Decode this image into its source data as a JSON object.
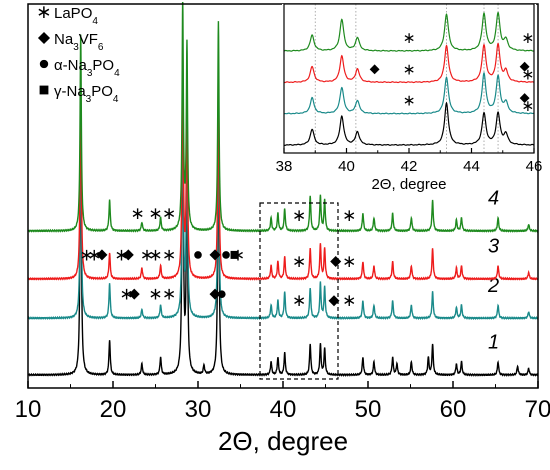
{
  "colors": {
    "curve_1": "#000000",
    "curve_2": "#1a8a8a",
    "curve_3": "#ee1c1c",
    "curve_4": "#1e8a1e",
    "axis": "#000000",
    "dashed_box": "#000000",
    "inset_gridline": "#9a9a9a"
  },
  "chart_data": [
    {
      "type": "line",
      "title": "",
      "xlabel": "2Θ, degree",
      "ylabel": "",
      "xlim": [
        10,
        70
      ],
      "x_ticks": [
        10,
        20,
        30,
        40,
        50,
        60,
        70
      ],
      "x_tick_labels": [
        "10",
        "20",
        "30",
        "40",
        "50",
        "60",
        "70"
      ],
      "y_ticks_shown": false,
      "legend": {
        "placement": "top-left",
        "entries": [
          {
            "marker": "asterisk",
            "marker_icon": "asterisk-icon",
            "parts": [
              {
                "t": "LaPO",
                "s": ""
              },
              {
                "t": "4",
                "s": "sub"
              }
            ]
          },
          {
            "marker": "diamond",
            "marker_icon": "diamond-icon",
            "parts": [
              {
                "t": "Na",
                "s": ""
              },
              {
                "t": "3",
                "s": "sub"
              },
              {
                "t": "VF",
                "s": ""
              },
              {
                "t": "6",
                "s": "sub"
              }
            ]
          },
          {
            "marker": "circle",
            "marker_icon": "circle-icon",
            "parts": [
              {
                "t": "α-Na",
                "s": ""
              },
              {
                "t": "3",
                "s": "sub"
              },
              {
                "t": "PO",
                "s": ""
              },
              {
                "t": "4",
                "s": "sub"
              }
            ]
          },
          {
            "marker": "square",
            "marker_icon": "square-icon",
            "parts": [
              {
                "t": "γ-Na",
                "s": ""
              },
              {
                "t": "3",
                "s": "sub"
              },
              {
                "t": "PO",
                "s": ""
              },
              {
                "t": "4",
                "s": "sub"
              }
            ]
          }
        ]
      },
      "series": [
        {
          "label": "1",
          "offset": 0,
          "baseline": 2,
          "peaks": [
            [
              16.2,
              62
            ],
            [
              19.6,
              8
            ],
            [
              23.4,
              2.5
            ],
            [
              25.6,
              4
            ],
            [
              28.2,
              70
            ],
            [
              28.7,
              50
            ],
            [
              30.7,
              2
            ],
            [
              32.4,
              62
            ],
            [
              38.6,
              3
            ],
            [
              39.4,
              4
            ],
            [
              40.2,
              5
            ],
            [
              43.2,
              7
            ],
            [
              44.4,
              7
            ],
            [
              44.9,
              6
            ],
            [
              49.4,
              4
            ],
            [
              50.7,
              3
            ],
            [
              52.9,
              4
            ],
            [
              53.4,
              2.5
            ],
            [
              55.1,
              3
            ],
            [
              57.1,
              4
            ],
            [
              57.6,
              7
            ],
            [
              60.4,
              2.5
            ],
            [
              61.0,
              3
            ],
            [
              65.3,
              3
            ],
            [
              67.6,
              2
            ],
            [
              68.9,
              1.5
            ]
          ],
          "markers": []
        },
        {
          "label": "2",
          "offset": 13,
          "baseline": 2,
          "peaks": [
            [
              16.2,
              45
            ],
            [
              19.6,
              8
            ],
            [
              23.4,
              2
            ],
            [
              25.6,
              3
            ],
            [
              28.2,
              52
            ],
            [
              28.7,
              42
            ],
            [
              32.4,
              48
            ],
            [
              38.6,
              3
            ],
            [
              39.4,
              4
            ],
            [
              40.2,
              6
            ],
            [
              43.2,
              7
            ],
            [
              44.4,
              8
            ],
            [
              44.9,
              7
            ],
            [
              49.4,
              4
            ],
            [
              50.7,
              3
            ],
            [
              52.9,
              4
            ],
            [
              55.1,
              3
            ],
            [
              57.6,
              6
            ],
            [
              60.4,
              2.5
            ],
            [
              61.0,
              3
            ],
            [
              65.3,
              3
            ],
            [
              68.9,
              1.5
            ]
          ],
          "markers": [
            {
              "symbol": "asterisk",
              "x": 21.6,
              "level": 5.5
            },
            {
              "symbol": "diamond",
              "x": 22.5,
              "level": 5.5
            },
            {
              "symbol": "asterisk",
              "x": 25.0,
              "level": 5.5
            },
            {
              "symbol": "asterisk",
              "x": 26.6,
              "level": 5.5
            },
            {
              "symbol": "diamond",
              "x": 32.0,
              "level": 5.5
            },
            {
              "symbol": "circle",
              "x": 32.8,
              "level": 5.5
            },
            {
              "symbol": "asterisk",
              "x": 41.9,
              "level": 4
            },
            {
              "symbol": "diamond",
              "x": 46.0,
              "level": 4
            },
            {
              "symbol": "asterisk",
              "x": 47.8,
              "level": 4
            }
          ]
        },
        {
          "label": "3",
          "offset": 22,
          "baseline": 2,
          "peaks": [
            [
              16.2,
              45
            ],
            [
              19.6,
              6
            ],
            [
              23.4,
              2.5
            ],
            [
              25.6,
              3
            ],
            [
              28.2,
              52
            ],
            [
              28.7,
              42
            ],
            [
              32.4,
              48
            ],
            [
              38.6,
              3
            ],
            [
              39.4,
              4
            ],
            [
              40.2,
              5
            ],
            [
              43.2,
              7
            ],
            [
              44.4,
              8
            ],
            [
              44.9,
              7
            ],
            [
              49.4,
              4
            ],
            [
              50.7,
              3
            ],
            [
              52.9,
              4
            ],
            [
              55.1,
              3
            ],
            [
              57.6,
              7
            ],
            [
              60.4,
              2.5
            ],
            [
              61.0,
              3
            ],
            [
              65.3,
              3
            ],
            [
              68.9,
              1.5
            ]
          ],
          "markers": [
            {
              "symbol": "asterisk",
              "x": 16.9,
              "level": 5.5
            },
            {
              "symbol": "asterisk",
              "x": 17.8,
              "level": 5.5
            },
            {
              "symbol": "diamond",
              "x": 18.7,
              "level": 5.5
            },
            {
              "symbol": "asterisk",
              "x": 21.0,
              "level": 5.5
            },
            {
              "symbol": "diamond",
              "x": 21.8,
              "level": 5.5
            },
            {
              "symbol": "asterisk",
              "x": 24.0,
              "level": 5.5
            },
            {
              "symbol": "asterisk",
              "x": 25.0,
              "level": 5.5
            },
            {
              "symbol": "asterisk",
              "x": 26.6,
              "level": 5.5
            },
            {
              "symbol": "circle",
              "x": 30.0,
              "level": 5.5
            },
            {
              "symbol": "diamond",
              "x": 32.0,
              "level": 5.5
            },
            {
              "symbol": "circle",
              "x": 33.3,
              "level": 5.5
            },
            {
              "symbol": "square",
              "x": 34.3,
              "level": 5.5
            },
            {
              "symbol": "asterisk",
              "x": 34.7,
              "level": 5.5
            },
            {
              "symbol": "asterisk",
              "x": 41.9,
              "level": 4
            },
            {
              "symbol": "diamond",
              "x": 46.2,
              "level": 4
            },
            {
              "symbol": "asterisk",
              "x": 47.8,
              "level": 4
            }
          ]
        },
        {
          "label": "4",
          "offset": 33,
          "baseline": 2,
          "peaks": [
            [
              16.2,
              45
            ],
            [
              19.6,
              7
            ],
            [
              23.4,
              2
            ],
            [
              25.6,
              3
            ],
            [
              28.2,
              52
            ],
            [
              28.7,
              42
            ],
            [
              32.4,
              48
            ],
            [
              38.6,
              3
            ],
            [
              39.4,
              4
            ],
            [
              40.2,
              5
            ],
            [
              43.2,
              8
            ],
            [
              44.4,
              8
            ],
            [
              44.9,
              7
            ],
            [
              49.4,
              4
            ],
            [
              50.7,
              3
            ],
            [
              52.9,
              4
            ],
            [
              55.1,
              3
            ],
            [
              57.6,
              7
            ],
            [
              60.4,
              2.5
            ],
            [
              61.0,
              3
            ],
            [
              65.3,
              3
            ],
            [
              68.9,
              1.5
            ]
          ],
          "markers": [
            {
              "symbol": "asterisk",
              "x": 22.9,
              "level": 4
            },
            {
              "symbol": "asterisk",
              "x": 25.0,
              "level": 4
            },
            {
              "symbol": "asterisk",
              "x": 26.6,
              "level": 4
            },
            {
              "symbol": "asterisk",
              "x": 41.9,
              "level": 3.5
            },
            {
              "symbol": "asterisk",
              "x": 47.8,
              "level": 3.5
            }
          ]
        }
      ],
      "highlight_region": {
        "xlim": [
          38,
          46
        ],
        "style": "dashed"
      }
    },
    {
      "type": "line",
      "title": "",
      "xlabel": "2Θ, degree",
      "ylabel": "",
      "xlim": [
        38,
        46
      ],
      "x_ticks": [
        38,
        40,
        42,
        44,
        46
      ],
      "x_tick_labels": [
        "38",
        "40",
        "42",
        "44",
        "46"
      ],
      "y_ticks_shown": false,
      "guide_lines_x": [
        39.0,
        40.3,
        43.2,
        44.4,
        44.85
      ],
      "series": [
        {
          "label": "1",
          "offset": 0,
          "baseline": 1,
          "peaks": [
            [
              38.9,
              3
            ],
            [
              39.85,
              5.5
            ],
            [
              40.35,
              2.5
            ],
            [
              43.2,
              8
            ],
            [
              44.4,
              6
            ],
            [
              44.85,
              6
            ],
            [
              45.1,
              2
            ]
          ],
          "markers": []
        },
        {
          "label": "2",
          "offset": 6,
          "baseline": 1,
          "peaks": [
            [
              38.9,
              3
            ],
            [
              39.85,
              5
            ],
            [
              40.35,
              2.5
            ],
            [
              43.2,
              7
            ],
            [
              44.4,
              7.5
            ],
            [
              44.85,
              7
            ],
            [
              45.1,
              2
            ]
          ],
          "markers": [
            {
              "symbol": "asterisk",
              "x": 42.0,
              "level": 2.5
            },
            {
              "symbol": "diamond",
              "x": 45.7,
              "level": 3
            },
            {
              "symbol": "asterisk",
              "x": 45.8,
              "level": 1.5
            }
          ]
        },
        {
          "label": "3",
          "offset": 12,
          "baseline": 1,
          "peaks": [
            [
              38.9,
              3
            ],
            [
              39.85,
              5
            ],
            [
              40.35,
              2.5
            ],
            [
              43.2,
              7
            ],
            [
              44.4,
              7
            ],
            [
              44.85,
              7
            ],
            [
              45.1,
              2
            ]
          ],
          "markers": [
            {
              "symbol": "diamond",
              "x": 40.9,
              "level": 2.5
            },
            {
              "symbol": "asterisk",
              "x": 42.0,
              "level": 2.5
            },
            {
              "symbol": "diamond",
              "x": 45.7,
              "level": 3
            },
            {
              "symbol": "asterisk",
              "x": 45.8,
              "level": 1.5
            }
          ]
        },
        {
          "label": "4",
          "offset": 18,
          "baseline": 1,
          "peaks": [
            [
              38.9,
              3
            ],
            [
              39.85,
              6
            ],
            [
              40.35,
              2.5
            ],
            [
              43.2,
              7
            ],
            [
              44.4,
              7
            ],
            [
              44.85,
              7
            ],
            [
              45.1,
              2
            ]
          ],
          "markers": [
            {
              "symbol": "asterisk",
              "x": 42.0,
              "level": 2.5
            },
            {
              "symbol": "asterisk",
              "x": 45.8,
              "level": 2.5
            }
          ]
        }
      ]
    }
  ]
}
